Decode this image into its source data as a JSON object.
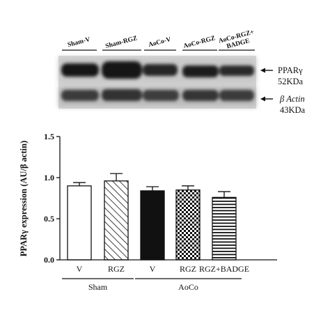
{
  "western_blot": {
    "lanes": [
      "Sham-V",
      "Sham-RGZ",
      "AoCo-V",
      "AoCo-RGZ",
      "AoCo-RGZ+\nBADGE"
    ],
    "markers": [
      {
        "name": "PPARγ",
        "size": "52KDa"
      },
      {
        "name": "β Actin",
        "size": "43KDa"
      }
    ]
  },
  "chart_data": {
    "type": "bar",
    "categories": [
      "V",
      "RGZ",
      "V",
      "RGZ",
      "RGZ+BADGE"
    ],
    "values": [
      0.9,
      0.96,
      0.84,
      0.85,
      0.76
    ],
    "errors": [
      0.04,
      0.09,
      0.05,
      0.05,
      0.07
    ],
    "fills": [
      "white",
      "diagonal-hatch",
      "black",
      "checkerboard",
      "horizontal-lines"
    ],
    "ylabel": "PPARγ expression (AU/β actin)",
    "ylim": [
      0,
      1.5
    ],
    "yticks": [
      "0.0",
      "0.5",
      "1.0",
      "1.5"
    ],
    "groups": [
      {
        "label": "Sham",
        "members": [
          0,
          1
        ]
      },
      {
        "label": "AoCo",
        "members": [
          2,
          3,
          4
        ]
      }
    ],
    "grid": false,
    "legend": "none"
  }
}
